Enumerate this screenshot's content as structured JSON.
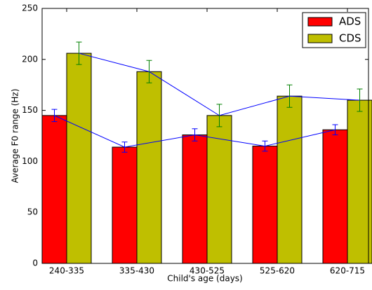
{
  "chart_data": {
    "type": "bar",
    "x_label": "Child's age (days)",
    "y_label": "Average F0 range (Hz)",
    "categories": [
      "240-335",
      "335-430",
      "430-525",
      "525-620",
      "620-715"
    ],
    "series": [
      {
        "name": "ADS",
        "color": "#ff0000",
        "error_color": "#0000ff",
        "values": [
          145,
          114,
          126,
          115,
          131
        ],
        "errors": [
          6,
          5,
          6,
          5,
          5
        ]
      },
      {
        "name": "CDS",
        "color": "#bfbf00",
        "error_color": "#008000",
        "values": [
          206,
          188,
          145,
          164,
          160
        ],
        "errors": [
          11,
          11,
          11,
          11,
          11
        ]
      }
    ],
    "line_color": "#0000ff",
    "ylim": [
      0,
      250
    ],
    "yticks": [
      0,
      50,
      100,
      150,
      200,
      250
    ],
    "legend": "upper right"
  }
}
